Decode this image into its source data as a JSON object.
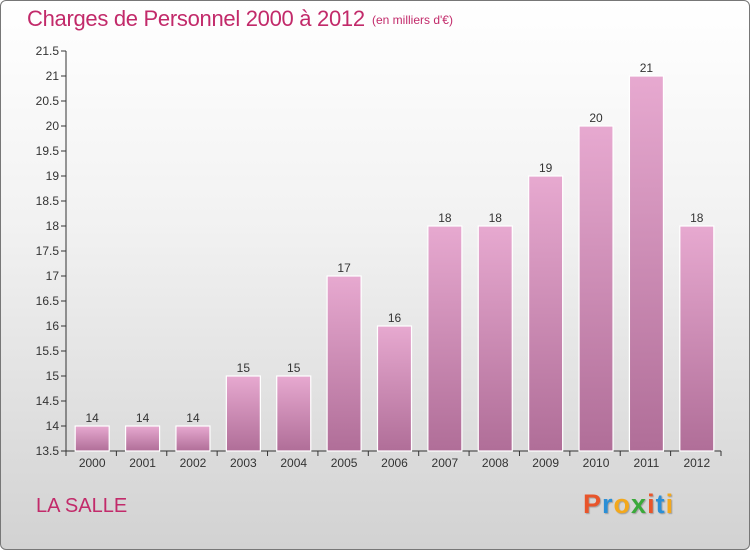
{
  "header": {
    "title": "Charges de Personnel 2000 à 2012",
    "subtitle": "(en milliers d'€)"
  },
  "footer": {
    "place": "LA SALLE",
    "logo": "Proxiti",
    "logo_colors": [
      "#e8552b",
      "#2b8fd6",
      "#f3a81c",
      "#3aa93a",
      "#e8552b",
      "#2b8fd6",
      "#f3a81c"
    ]
  },
  "colors": {
    "accent": "#c22a6a",
    "bar_top": "#e7a9d0",
    "bar_bottom": "#b06e98",
    "axis": "#333333"
  },
  "chart_data": {
    "type": "bar",
    "categories": [
      "2000",
      "2001",
      "2002",
      "2003",
      "2004",
      "2005",
      "2006",
      "2007",
      "2008",
      "2009",
      "2010",
      "2011",
      "2012"
    ],
    "values": [
      14,
      14,
      14,
      15,
      15,
      17,
      16,
      18,
      18,
      19,
      20,
      21,
      18
    ],
    "data_labels": [
      "14",
      "14",
      "14",
      "15",
      "15",
      "17",
      "16",
      "18",
      "18",
      "19",
      "20",
      "21",
      "18"
    ],
    "ylim": [
      13.5,
      21.5
    ],
    "yticks": [
      13.5,
      14,
      14.5,
      15,
      15.5,
      16,
      16.5,
      17,
      17.5,
      18,
      18.5,
      19,
      19.5,
      20,
      20.5,
      21,
      21.5
    ],
    "ytick_labels": [
      "13.5",
      "14",
      "14.5",
      "15",
      "15.5",
      "16",
      "16.5",
      "17",
      "17.5",
      "18",
      "18.5",
      "19",
      "19.5",
      "20",
      "20.5",
      "21",
      "21.5"
    ],
    "grid": false,
    "legend": "none"
  }
}
